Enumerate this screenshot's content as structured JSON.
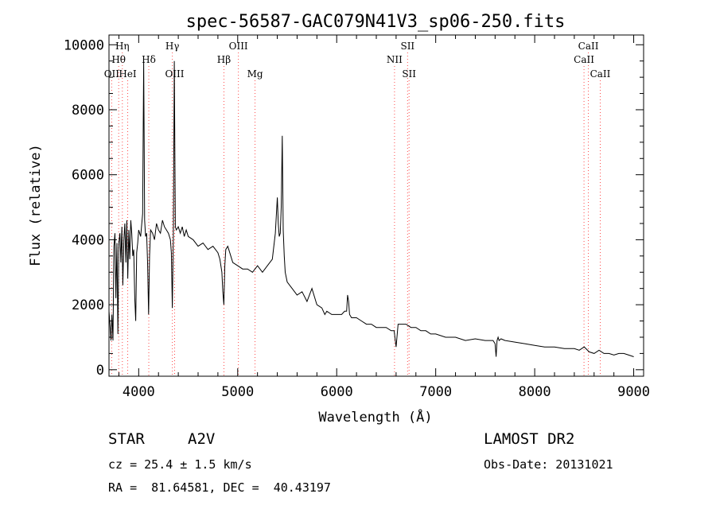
{
  "chart_data": {
    "type": "line",
    "title": "spec-56587-GAC079N41V3_sp06-250.fits",
    "xlabel": "Wavelength (Å)",
    "ylabel": "Flux (relative)",
    "xlim": [
      3700,
      9100
    ],
    "ylim": [
      -200,
      10300
    ],
    "xticks": [
      4000,
      5000,
      6000,
      7000,
      8000,
      9000
    ],
    "yticks": [
      0,
      2000,
      4000,
      6000,
      8000,
      10000
    ],
    "grid": false,
    "line_color": "#000000",
    "marker_color": "#ff4a4a",
    "spectrum": {
      "x": [
        3700,
        3710,
        3720,
        3730,
        3740,
        3750,
        3760,
        3770,
        3780,
        3790,
        3800,
        3810,
        3820,
        3830,
        3840,
        3850,
        3860,
        3870,
        3880,
        3890,
        3900,
        3910,
        3920,
        3930,
        3940,
        3950,
        3960,
        3970,
        3980,
        3990,
        4000,
        4020,
        4040,
        4050,
        4060,
        4070,
        4080,
        4090,
        4100,
        4110,
        4120,
        4140,
        4160,
        4180,
        4200,
        4220,
        4240,
        4260,
        4280,
        4300,
        4320,
        4330,
        4340,
        4350,
        4360,
        4370,
        4380,
        4400,
        4420,
        4440,
        4460,
        4480,
        4500,
        4550,
        4600,
        4650,
        4700,
        4750,
        4800,
        4820,
        4840,
        4850,
        4860,
        4870,
        4880,
        4900,
        4920,
        4950,
        5000,
        5050,
        5100,
        5150,
        5200,
        5250,
        5300,
        5350,
        5380,
        5400,
        5410,
        5420,
        5430,
        5440,
        5450,
        5460,
        5470,
        5480,
        5500,
        5550,
        5600,
        5650,
        5700,
        5750,
        5800,
        5850,
        5880,
        5900,
        5950,
        6000,
        6050,
        6080,
        6100,
        6110,
        6120,
        6130,
        6150,
        6200,
        6250,
        6300,
        6350,
        6400,
        6450,
        6500,
        6550,
        6580,
        6600,
        6620,
        6650,
        6700,
        6750,
        6800,
        6850,
        6900,
        6950,
        7000,
        7100,
        7200,
        7300,
        7400,
        7500,
        7550,
        7580,
        7600,
        7610,
        7620,
        7630,
        7640,
        7660,
        7700,
        7800,
        7900,
        8000,
        8100,
        8200,
        8300,
        8400,
        8450,
        8500,
        8550,
        8600,
        8650,
        8700,
        8750,
        8800,
        8850,
        8900,
        8950,
        9000
      ],
      "y": [
        1800,
        1400,
        900,
        1700,
        900,
        3800,
        4200,
        2200,
        3900,
        1100,
        3900,
        4200,
        3300,
        4400,
        2600,
        4000,
        4500,
        3300,
        4600,
        2800,
        4300,
        3400,
        4600,
        4200,
        3500,
        3700,
        2200,
        1500,
        3600,
        3900,
        4300,
        4100,
        4800,
        9500,
        4600,
        4100,
        4200,
        3300,
        1700,
        3500,
        4300,
        4200,
        4000,
        4500,
        4300,
        4200,
        4600,
        4400,
        4300,
        4200,
        4000,
        3600,
        1900,
        4100,
        9500,
        4400,
        4300,
        4400,
        4200,
        4400,
        4100,
        4300,
        4100,
        4000,
        3800,
        3900,
        3700,
        3800,
        3600,
        3400,
        3000,
        2400,
        2000,
        3200,
        3700,
        3800,
        3600,
        3300,
        3200,
        3100,
        3100,
        3000,
        3200,
        3000,
        3200,
        3400,
        4200,
        5300,
        4500,
        4100,
        4200,
        5000,
        7200,
        4300,
        3500,
        3000,
        2700,
        2500,
        2300,
        2400,
        2100,
        2500,
        2000,
        1900,
        1700,
        1800,
        1700,
        1700,
        1700,
        1800,
        1800,
        2300,
        2100,
        1700,
        1600,
        1600,
        1500,
        1400,
        1400,
        1300,
        1300,
        1300,
        1200,
        1200,
        700,
        1400,
        1400,
        1400,
        1300,
        1300,
        1200,
        1200,
        1100,
        1100,
        1000,
        1000,
        900,
        950,
        900,
        900,
        900,
        800,
        400,
        900,
        1000,
        900,
        950,
        900,
        850,
        800,
        750,
        700,
        700,
        650,
        650,
        600,
        700,
        550,
        500,
        600,
        500,
        500,
        450,
        500,
        500,
        450,
        400
      ]
    },
    "lines": [
      {
        "label": "Hη",
        "wave": 3835,
        "row": 0
      },
      {
        "label": "Hθ",
        "wave": 3798,
        "row": 1
      },
      {
        "label": "OII",
        "wave": 3727,
        "row": 2
      },
      {
        "label": "HeI",
        "wave": 3889,
        "row": 2
      },
      {
        "label": "Hδ",
        "wave": 4102,
        "row": 1
      },
      {
        "label": "Hγ",
        "wave": 4340,
        "row": 0
      },
      {
        "label": "OIII",
        "wave": 4363,
        "row": 2
      },
      {
        "label": "Hβ",
        "wave": 4861,
        "row": 1
      },
      {
        "label": "OIII",
        "wave": 5007,
        "row": 0
      },
      {
        "label": "Mg",
        "wave": 5175,
        "row": 2
      },
      {
        "label": "NII",
        "wave": 6584,
        "row": 1
      },
      {
        "label": "SII",
        "wave": 6716,
        "row": 0
      },
      {
        "label": "SII",
        "wave": 6731,
        "row": 2
      },
      {
        "label": "CaII",
        "wave": 8498,
        "row": 1
      },
      {
        "label": "CaII",
        "wave": 8542,
        "row": 0
      },
      {
        "label": "CaII",
        "wave": 8662,
        "row": 2
      }
    ]
  },
  "info": {
    "object_type": "STAR",
    "subclass": "A2V",
    "survey": "LAMOST DR2",
    "cz": "cz = 25.4 ± 1.5 km/s",
    "obs_date": "Obs-Date: 20131021",
    "radec": "RA =  81.64581, DEC =  40.43197"
  }
}
